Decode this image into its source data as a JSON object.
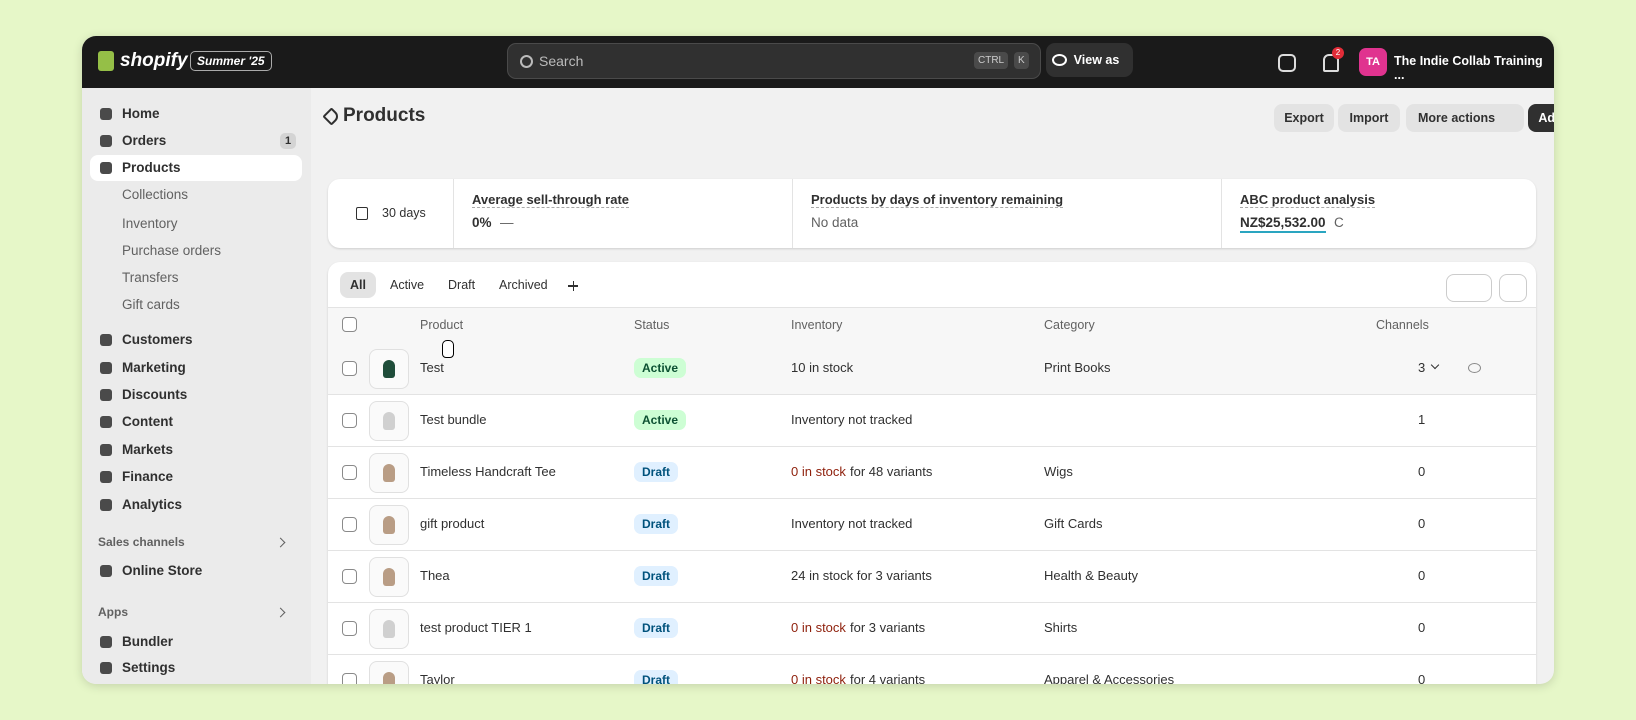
{
  "header": {
    "logo": "shopify",
    "badge": "Summer '25",
    "search": "Search",
    "shortcut": [
      "CTRL",
      "K"
    ],
    "view_as": "View as",
    "notifications": "2",
    "avatar": "TA",
    "store": "The Indie Collab Training ..."
  },
  "sidebar": {
    "items": [
      {
        "label": "Home"
      },
      {
        "label": "Orders",
        "badge": "1"
      },
      {
        "label": "Products"
      }
    ],
    "subitems": [
      "Collections",
      "Inventory",
      "Purchase orders",
      "Transfers",
      "Gift cards"
    ],
    "items2": [
      "Customers",
      "Marketing",
      "Discounts",
      "Content",
      "Markets",
      "Finance",
      "Analytics"
    ],
    "sales_channels": "Sales channels",
    "online_store": "Online Store",
    "apps": "Apps",
    "bundler": "Bundler",
    "settings": "Settings"
  },
  "page": {
    "title": "Products",
    "buttons": [
      "Export",
      "Import",
      "More actions",
      "Add product"
    ],
    "period": "30 days",
    "metrics": [
      {
        "title": "Average sell-through rate",
        "value": "0%",
        "extra": "—"
      },
      {
        "title": "Products by days of inventory remaining",
        "value": "No data"
      },
      {
        "title": "ABC product analysis",
        "value": "NZ$25,532.00",
        "extra": "C"
      }
    ],
    "tabs": [
      "All",
      "Active",
      "Draft",
      "Archived"
    ],
    "table": {
      "headers": [
        "Product",
        "Status",
        "Inventory",
        "Category",
        "Channels"
      ],
      "rows": [
        {
          "product": "Test",
          "status": "Active",
          "inventory": "10 in stock",
          "category": "Print Books",
          "channels": "3"
        },
        {
          "product": "Test bundle",
          "status": "Active",
          "inventory": "Inventory not tracked",
          "channels": "1"
        },
        {
          "product": "Timeless Handcraft Tee",
          "status": "Draft",
          "inventory_alert": "0 in stock",
          "inventory": "for 48 variants",
          "category": "Wigs",
          "channels": "0"
        },
        {
          "product": "gift product",
          "status": "Draft",
          "inventory": "Inventory not tracked",
          "category": "Gift Cards",
          "channels": "0"
        },
        {
          "product": "Thea",
          "status": "Draft",
          "inventory": "24 in stock for 3 variants",
          "category": "Health & Beauty",
          "channels": "0"
        },
        {
          "product": "test product TIER 1",
          "status": "Draft",
          "inventory_alert": "0 in stock",
          "inventory": "for 3 variants",
          "category": "Shirts",
          "channels": "0"
        },
        {
          "product": "Taylor",
          "status": "Draft",
          "inventory_alert": "0 in stock",
          "inventory": "for 4 variants",
          "category": "Apparel & Accessories",
          "channels": "0"
        }
      ]
    }
  }
}
